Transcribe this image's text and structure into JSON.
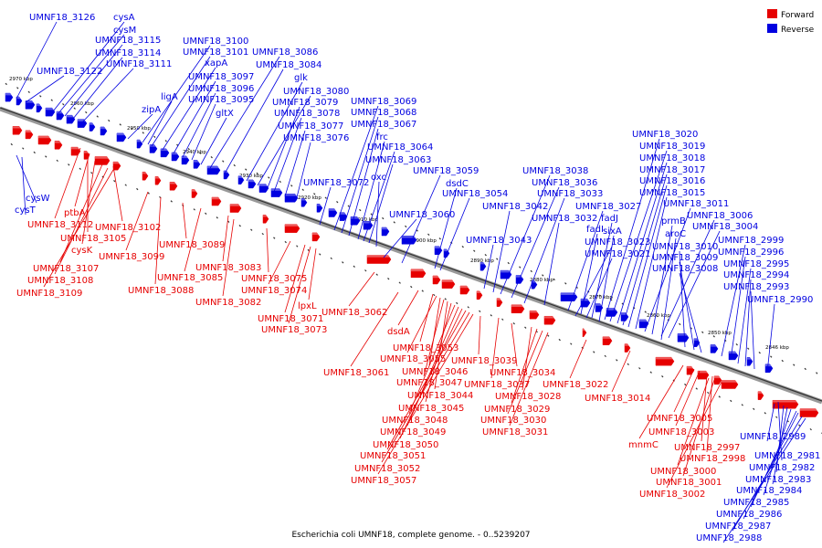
{
  "title": "Escherichia coli UMNF18, complete genome. - 0..5239207",
  "legend": [
    {
      "label": "Forward",
      "color": "#e60000"
    },
    {
      "label": "Reverse",
      "color": "#0000e0"
    }
  ],
  "colors": {
    "forward": "#e60000",
    "reverse": "#0000e0",
    "backbone": "#888888"
  },
  "axis": {
    "direction": "decreasing left to right",
    "ticks": [
      "2970 kbp",
      "2960 kbp",
      "2950 kbp",
      "2940 kbp",
      "2930 kbp",
      "2920 kbp",
      "2910 kbp",
      "2900 kbp",
      "2890 kbp",
      "2880 kbp",
      "2870 kbp",
      "2860 kbp",
      "2850 kbp",
      "2846 kbp"
    ]
  },
  "reverse_labels": [
    "UMNF18_3126",
    "cysA",
    "cysM",
    "UMNF18_3115",
    "UMNF18_3114",
    "UMNF18_3111",
    "UMNF18_3122",
    "UMNF18_3100",
    "UMNF18_3101",
    "xapA",
    "UMNF18_3097",
    "UMNF18_3096",
    "UMNF18_3095",
    "ligA",
    "zipA",
    "gltX",
    "UMNF18_3086",
    "UMNF18_3084",
    "glk",
    "UMNF18_3080",
    "UMNF18_3079",
    "UMNF18_3078",
    "UMNF18_3077",
    "UMNF18_3076",
    "UMNF18_3069",
    "UMNF18_3068",
    "UMNF18_3067",
    "frc",
    "UMNF18_3064",
    "UMNF18_3063",
    "oxc",
    "UMNF18_3072",
    "UMNF18_3059",
    "dsdC",
    "UMNF18_3054",
    "UMNF18_3060",
    "UMNF18_3038",
    "UMNF18_3036",
    "UMNF18_3033",
    "UMNF18_3042",
    "UMNF18_3027",
    "UMNF18_3032",
    "fadI",
    "fadJ",
    "sixA",
    "UMNF18_3043",
    "UMNF18_3020",
    "UMNF18_3019",
    "UMNF18_3018",
    "UMNF18_3017",
    "UMNF18_3016",
    "UMNF18_3015",
    "UMNF18_3011",
    "prmB",
    "UMNF18_3006",
    "UMNF18_3004",
    "aroC",
    "UMNF18_3023",
    "UMNF18_3021",
    "UMNF18_3010",
    "UMNF18_3009",
    "UMNF18_3008",
    "UMNF18_2999",
    "UMNF18_2996",
    "UMNF18_2995",
    "UMNF18_2994",
    "UMNF18_2993",
    "UMNF18_2990",
    "cysW",
    "cysT",
    "UMNF18_2989",
    "UMNF18_2981",
    "UMNF18_2982",
    "UMNF18_2983",
    "UMNF18_2984",
    "UMNF18_2985",
    "UMNF18_2986",
    "UMNF18_2987",
    "UMNF18_2988"
  ],
  "forward_labels": [
    "ptbA",
    "UMNF18_3112",
    "UMNF18_3105",
    "cysK",
    "UMNF18_3107",
    "UMNF18_3108",
    "UMNF18_3109",
    "UMNF18_3102",
    "UMNF18_3099",
    "UMNF18_3089",
    "UMNF18_3083",
    "UMNF18_3085",
    "UMNF18_3088",
    "UMNF18_3082",
    "UMNF18_3075",
    "UMNF18_3074",
    "lpxL",
    "UMNF18_3071",
    "UMNF18_3073",
    "UMNF18_3062",
    "dsdA",
    "UMNF18_3061",
    "UMNF18_3053",
    "UMNF18_3055",
    "UMNF18_3046",
    "UMNF18_3047",
    "UMNF18_3044",
    "UMNF18_3045",
    "UMNF18_3048",
    "UMNF18_3049",
    "UMNF18_3050",
    "UMNF18_3051",
    "UMNF18_3052",
    "UMNF18_3057",
    "UMNF18_3039",
    "UMNF18_3034",
    "UMNF18_3037",
    "UMNF18_3028",
    "UMNF18_3029",
    "UMNF18_3030",
    "UMNF18_3031",
    "UMNF18_3022",
    "UMNF18_3014",
    "UMNF18_3005",
    "UMNF18_3003",
    "mnmC",
    "UMNF18_2997",
    "UMNF18_2998",
    "UMNF18_3000",
    "UMNF18_3001",
    "UMNF18_3002"
  ]
}
